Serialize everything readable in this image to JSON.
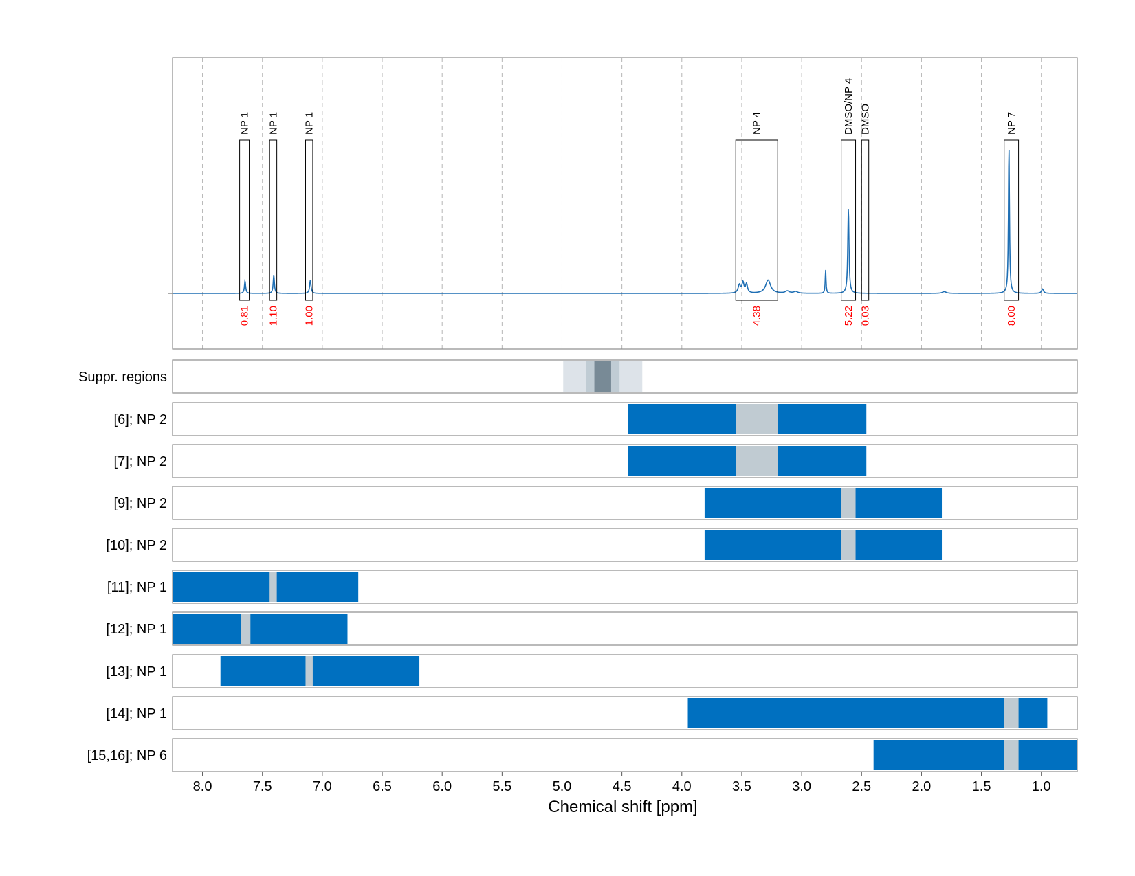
{
  "chart_data": {
    "type": "nmr-spectrum-with-region-tracks",
    "xlabel": "Chemical shift [ppm]",
    "x_reversed": true,
    "xlim": [
      8.25,
      0.7
    ],
    "xticks": [
      8.0,
      7.5,
      7.0,
      6.5,
      6.0,
      5.5,
      5.0,
      4.5,
      4.0,
      3.5,
      3.0,
      2.5,
      2.0,
      1.5,
      1.0
    ],
    "xtick_labels": [
      "8.0",
      "7.5",
      "7.0",
      "6.5",
      "6.0",
      "5.5",
      "5.0",
      "4.5",
      "4.0",
      "3.5",
      "3.0",
      "2.5",
      "2.0",
      "1.5",
      "1.0"
    ],
    "grid": "vertical-dashed",
    "colors": {
      "spectrum": "#1f6fb4",
      "region_fill": "#0070c0",
      "peak_window": "#c0cbd2",
      "integral_text": "#ff0000",
      "suppr_light": "#dde3e9",
      "suppr_mid": "#c0ccd4",
      "suppr_dark": "#788a96"
    },
    "spectrum": {
      "baseline": 0,
      "peaks": [
        {
          "x": 7.645,
          "height": 0.085,
          "width": 0.006
        },
        {
          "x": 7.405,
          "height": 0.125,
          "width": 0.006
        },
        {
          "x": 7.1,
          "height": 0.09,
          "width": 0.007
        },
        {
          "x": 3.52,
          "height": 0.055,
          "width": 0.012
        },
        {
          "x": 3.49,
          "height": 0.07,
          "width": 0.01
        },
        {
          "x": 3.46,
          "height": 0.06,
          "width": 0.01
        },
        {
          "x": 3.28,
          "height": 0.09,
          "width": 0.025
        },
        {
          "x": 3.12,
          "height": 0.015,
          "width": 0.02
        },
        {
          "x": 3.05,
          "height": 0.012,
          "width": 0.02
        },
        {
          "x": 2.8,
          "height": 0.16,
          "width": 0.004
        },
        {
          "x": 2.61,
          "height": 0.58,
          "width": 0.006
        },
        {
          "x": 1.81,
          "height": 0.012,
          "width": 0.02
        },
        {
          "x": 1.27,
          "height": 1.0,
          "width": 0.005
        },
        {
          "x": 0.99,
          "height": 0.03,
          "width": 0.01
        }
      ]
    },
    "integration_boxes": [
      {
        "label": "NP 1",
        "from": 7.69,
        "to": 7.61,
        "integral": "0.81"
      },
      {
        "label": "NP 1",
        "from": 7.44,
        "to": 7.38,
        "integral": "1.10"
      },
      {
        "label": "NP 1",
        "from": 7.14,
        "to": 7.08,
        "integral": "1.00"
      },
      {
        "label": "NP 4",
        "from": 3.55,
        "to": 3.2,
        "integral": "4.38"
      },
      {
        "label": "DMSO/NP 4",
        "from": 2.67,
        "to": 2.55,
        "integral": "5.22"
      },
      {
        "label": "DMSO",
        "from": 2.5,
        "to": 2.44,
        "integral": "0.03"
      },
      {
        "label": "NP 7",
        "from": 1.31,
        "to": 1.19,
        "integral": "8.00"
      }
    ],
    "suppressed_regions": {
      "label": "Suppr. regions",
      "bands": [
        {
          "from": 4.99,
          "to": 4.33,
          "shade": "light"
        },
        {
          "from": 4.8,
          "to": 4.52,
          "shade": "mid"
        },
        {
          "from": 4.73,
          "to": 4.59,
          "shade": "dark"
        }
      ]
    },
    "region_tracks": [
      {
        "label": "[6]; NP 2",
        "from": 4.45,
        "to": 2.46,
        "window_from": 3.55,
        "window_to": 3.2
      },
      {
        "label": "[7]; NP 2",
        "from": 4.45,
        "to": 2.46,
        "window_from": 3.55,
        "window_to": 3.2
      },
      {
        "label": "[9]; NP 2",
        "from": 3.81,
        "to": 1.83,
        "window_from": 2.67,
        "window_to": 2.55
      },
      {
        "label": "[10]; NP 2",
        "from": 3.81,
        "to": 1.83,
        "window_from": 2.67,
        "window_to": 2.55
      },
      {
        "label": "[11]; NP 1",
        "from": 8.25,
        "to": 6.7,
        "window_from": 7.44,
        "window_to": 7.38
      },
      {
        "label": "[12]; NP 1",
        "from": 8.25,
        "to": 6.79,
        "window_from": 7.68,
        "window_to": 7.6
      },
      {
        "label": "[13]; NP 1",
        "from": 7.85,
        "to": 6.19,
        "window_from": 7.14,
        "window_to": 7.08
      },
      {
        "label": "[14]; NP 1",
        "from": 3.95,
        "to": 0.95,
        "window_from": 1.31,
        "window_to": 1.19
      },
      {
        "label": "[15,16]; NP 6",
        "from": 2.4,
        "to": 0.7,
        "window_from": 1.31,
        "window_to": 1.19
      }
    ]
  }
}
